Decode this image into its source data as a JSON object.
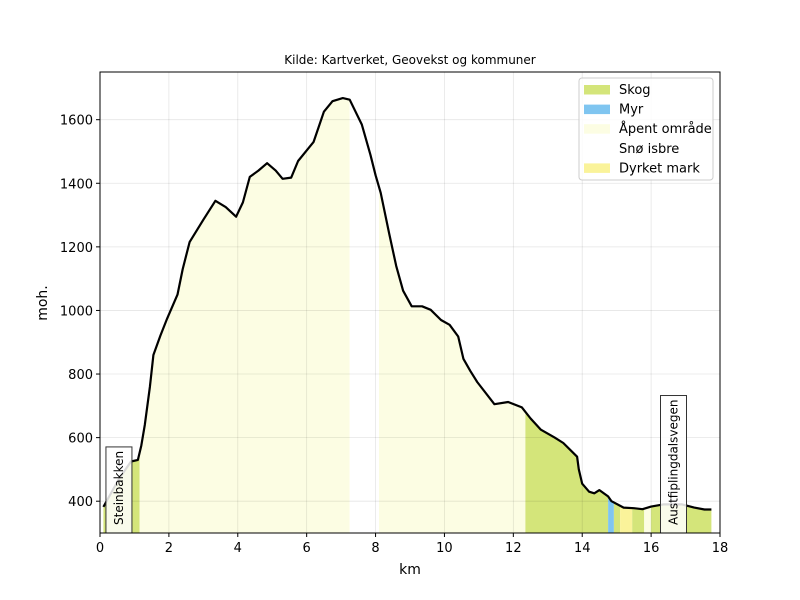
{
  "chart_data": {
    "type": "area",
    "title": "Kilde: Kartverket, Geovekst og kommuner",
    "xlabel": "km",
    "ylabel": "moh.",
    "xlim": [
      0,
      18
    ],
    "ylim": [
      300,
      1750
    ],
    "x_ticks": [
      0,
      2,
      4,
      6,
      8,
      10,
      12,
      14,
      16,
      18
    ],
    "y_ticks": [
      400,
      600,
      800,
      1000,
      1200,
      1400,
      1600
    ],
    "grid": true,
    "legend_position": "top-right",
    "legend": [
      {
        "name": "Skog",
        "color": "#d4e57a"
      },
      {
        "name": "Myr",
        "color": "#7fc5f0"
      },
      {
        "name": "Åpent område",
        "color": "#fcfde3"
      },
      {
        "name": "Snø isbre",
        "color": "#ffffff"
      },
      {
        "name": "Dyrket mark",
        "color": "#faf39a"
      }
    ],
    "profile": [
      [
        0.1,
        382
      ],
      [
        0.55,
        470
      ],
      [
        0.9,
        525
      ],
      [
        1.1,
        530
      ],
      [
        1.2,
        575
      ],
      [
        1.3,
        640
      ],
      [
        1.45,
        760
      ],
      [
        1.55,
        860
      ],
      [
        1.75,
        920
      ],
      [
        1.95,
        975
      ],
      [
        2.25,
        1050
      ],
      [
        2.4,
        1130
      ],
      [
        2.6,
        1215
      ],
      [
        3.0,
        1285
      ],
      [
        3.35,
        1345
      ],
      [
        3.65,
        1325
      ],
      [
        3.95,
        1295
      ],
      [
        4.15,
        1340
      ],
      [
        4.35,
        1420
      ],
      [
        4.6,
        1440
      ],
      [
        4.85,
        1463
      ],
      [
        5.1,
        1440
      ],
      [
        5.3,
        1414
      ],
      [
        5.55,
        1418
      ],
      [
        5.75,
        1470
      ],
      [
        6.05,
        1510
      ],
      [
        6.2,
        1530
      ],
      [
        6.5,
        1625
      ],
      [
        6.75,
        1658
      ],
      [
        7.05,
        1668
      ],
      [
        7.25,
        1663
      ],
      [
        7.6,
        1585
      ],
      [
        7.85,
        1490
      ],
      [
        8.0,
        1425
      ],
      [
        8.15,
        1370
      ],
      [
        8.4,
        1240
      ],
      [
        8.6,
        1140
      ],
      [
        8.8,
        1062
      ],
      [
        9.05,
        1013
      ],
      [
        9.35,
        1013
      ],
      [
        9.6,
        1002
      ],
      [
        9.9,
        970
      ],
      [
        10.15,
        955
      ],
      [
        10.4,
        918
      ],
      [
        10.55,
        848
      ],
      [
        10.75,
        810
      ],
      [
        10.95,
        775
      ],
      [
        11.45,
        705
      ],
      [
        11.85,
        712
      ],
      [
        12.25,
        695
      ],
      [
        12.5,
        660
      ],
      [
        12.8,
        625
      ],
      [
        13.2,
        600
      ],
      [
        13.45,
        583
      ],
      [
        13.85,
        540
      ],
      [
        13.9,
        500
      ],
      [
        14.0,
        455
      ],
      [
        14.2,
        430
      ],
      [
        14.35,
        425
      ],
      [
        14.5,
        435
      ],
      [
        14.75,
        415
      ],
      [
        14.85,
        400
      ],
      [
        15.2,
        380
      ],
      [
        15.5,
        378
      ],
      [
        15.75,
        375
      ],
      [
        16.0,
        383
      ],
      [
        16.35,
        390
      ],
      [
        16.55,
        390
      ],
      [
        16.9,
        390
      ],
      [
        17.25,
        380
      ],
      [
        17.55,
        374
      ],
      [
        17.75,
        374
      ]
    ],
    "landcover": [
      {
        "type": "Skog",
        "from": 0.1,
        "to": 1.15
      },
      {
        "type": "Åpent område",
        "from": 1.15,
        "to": 7.25
      },
      {
        "type": "Snø isbre",
        "from": 7.25,
        "to": 8.1
      },
      {
        "type": "Åpent område",
        "from": 8.1,
        "to": 12.35
      },
      {
        "type": "Skog",
        "from": 12.35,
        "to": 14.75
      },
      {
        "type": "Myr",
        "from": 14.75,
        "to": 14.92
      },
      {
        "type": "Skog",
        "from": 14.92,
        "to": 15.1
      },
      {
        "type": "Dyrket mark",
        "from": 15.1,
        "to": 15.45
      },
      {
        "type": "Skog",
        "from": 15.45,
        "to": 15.8
      },
      {
        "type": "Åpent område",
        "from": 15.8,
        "to": 16.0
      },
      {
        "type": "Skog",
        "from": 16.0,
        "to": 17.75
      }
    ],
    "annotations": [
      {
        "text": "Steinbakken",
        "x": 0.55
      },
      {
        "text": "Austfiplingdalsvegen",
        "x": 16.65
      }
    ]
  }
}
